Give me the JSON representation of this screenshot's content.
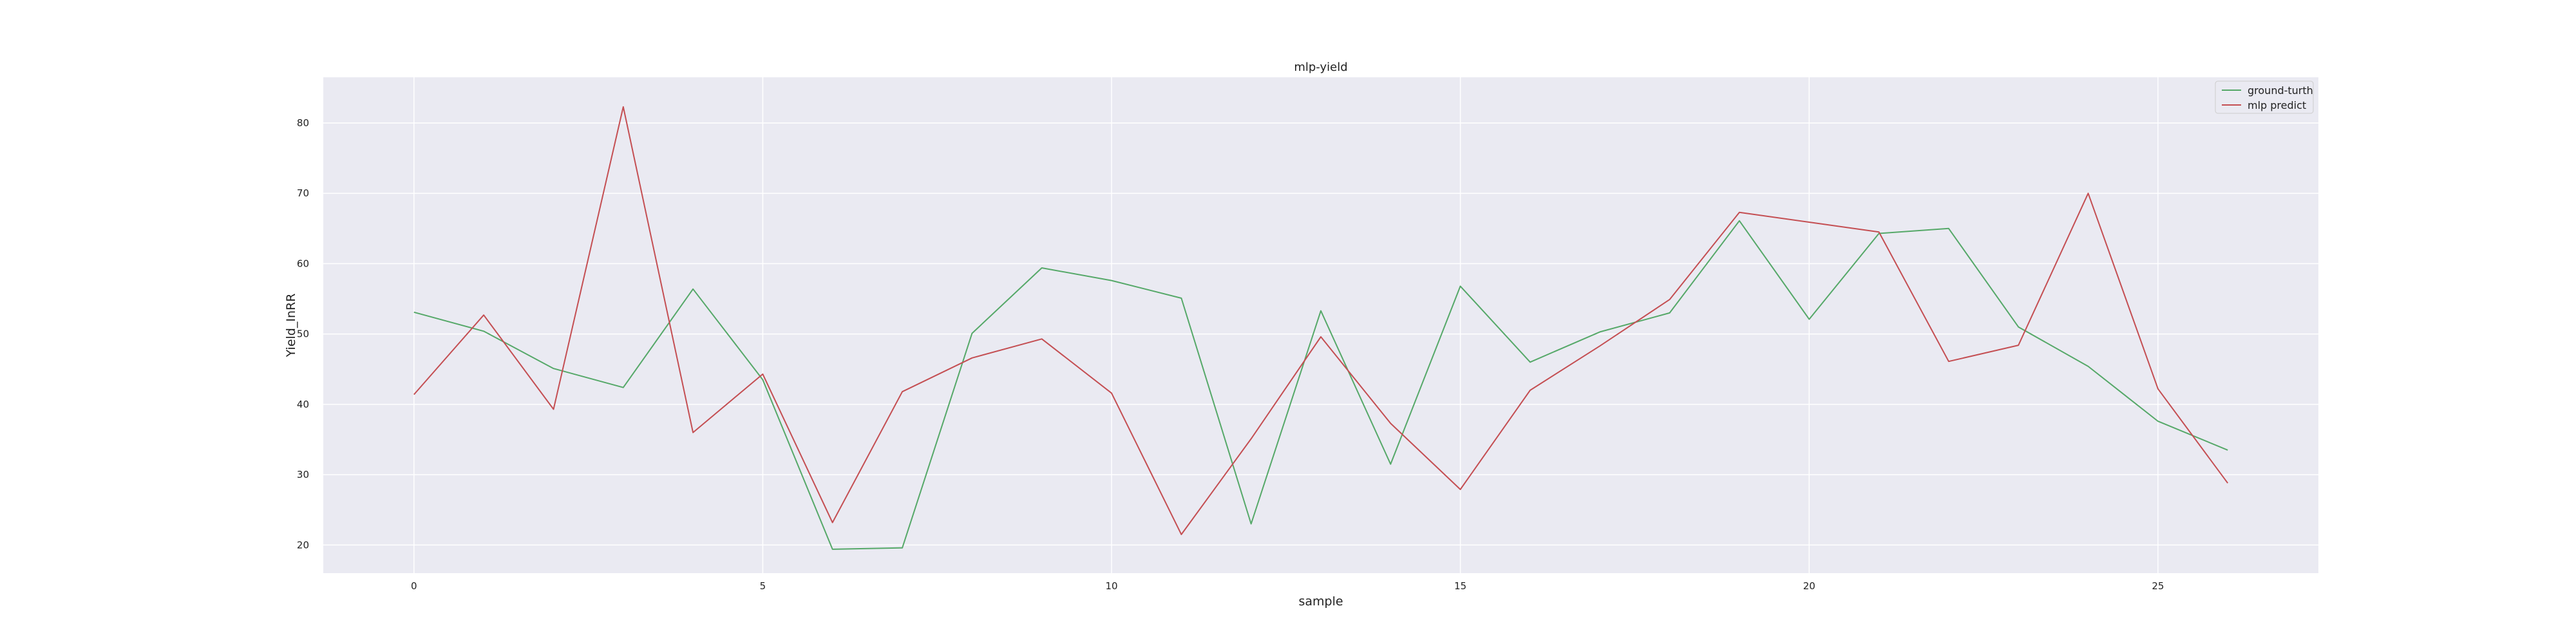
{
  "chart_data": {
    "type": "line",
    "title": "mlp-yield",
    "xlabel": "sample",
    "ylabel": "Yield_InRR",
    "xlim": [
      -1.3,
      27.3
    ],
    "ylim": [
      16,
      86.5
    ],
    "xticks": [
      0,
      5,
      10,
      15,
      20,
      25
    ],
    "yticks": [
      20,
      30,
      40,
      50,
      60,
      70,
      80
    ],
    "grid": true,
    "legend_position": "top-right",
    "x": [
      0,
      1,
      2,
      3,
      4,
      5,
      6,
      7,
      8,
      9,
      10,
      11,
      12,
      13,
      14,
      15,
      16,
      17,
      18,
      19,
      20,
      21,
      22,
      23,
      24,
      25,
      26
    ],
    "series": [
      {
        "name": "ground-turth",
        "color": "#55a868",
        "values": [
          53.1,
          50.4,
          45.1,
          42.4,
          56.4,
          43.5,
          19.4,
          19.6,
          50.1,
          59.4,
          57.6,
          55.1,
          23.0,
          53.3,
          31.5,
          56.8,
          46.0,
          50.3,
          53.0,
          66.1,
          52.1,
          64.3,
          65.0,
          51.0,
          45.4,
          37.6,
          33.5
        ]
      },
      {
        "name": "mlp predict",
        "color": "#c44e52",
        "values": [
          41.4,
          52.7,
          39.3,
          82.3,
          36.0,
          44.3,
          23.2,
          41.8,
          46.6,
          49.3,
          41.6,
          21.5,
          35.1,
          49.6,
          37.3,
          27.9,
          42.0,
          48.3,
          54.9,
          67.3,
          65.9,
          64.5,
          46.1,
          48.4,
          70.0,
          42.2,
          28.8
        ]
      }
    ]
  }
}
